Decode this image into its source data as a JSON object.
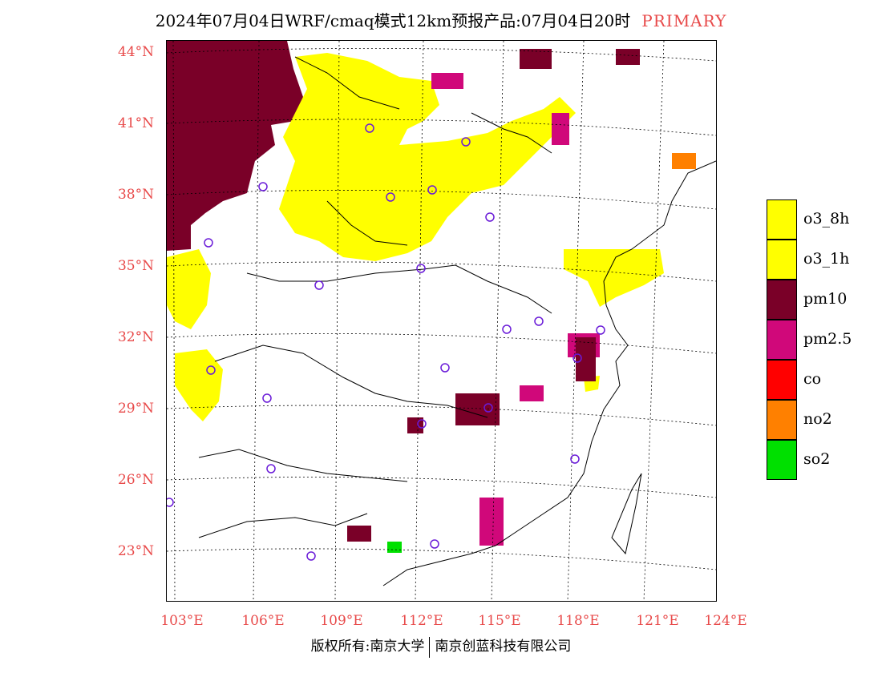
{
  "header": {
    "title": "2024年07月04日WRF/cmaq模式12km预报产品:07月04日20时",
    "tag": "PRIMARY"
  },
  "map": {
    "latitude_labels": [
      "44°N",
      "41°N",
      "38°N",
      "35°N",
      "32°N",
      "29°N",
      "26°N",
      "23°N"
    ],
    "longitude_labels": [
      "103°E",
      "106°E",
      "109°E",
      "112°E",
      "115°E",
      "118°E",
      "121°E",
      "124°E"
    ]
  },
  "legend": {
    "items": [
      {
        "label": "o3_8h",
        "color": "#ffff00"
      },
      {
        "label": "o3_1h",
        "color": "#ffff00"
      },
      {
        "label": "pm10",
        "color": "#7a0028"
      },
      {
        "label": "pm2.5",
        "color": "#d0087a"
      },
      {
        "label": "co",
        "color": "#ff0000"
      },
      {
        "label": "no2",
        "color": "#ff8000"
      },
      {
        "label": "so2",
        "color": "#00e000"
      }
    ]
  },
  "footer": {
    "copyright": "版权所有:南京大学",
    "company": "南京创蓝科技有限公司"
  }
}
